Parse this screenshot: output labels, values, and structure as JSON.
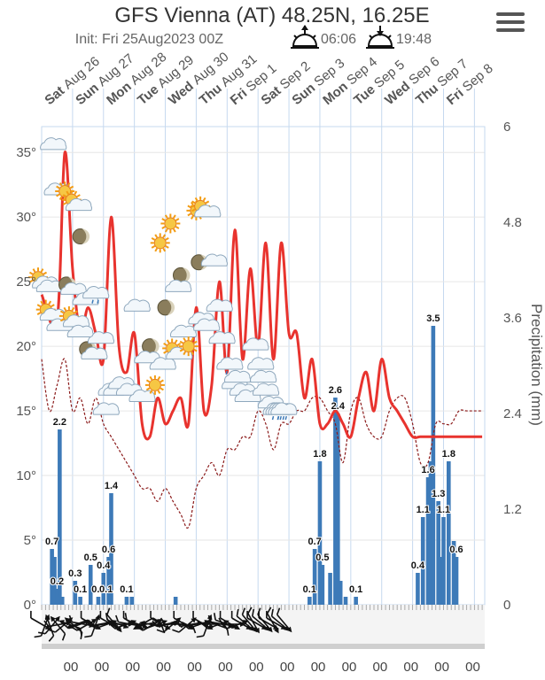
{
  "header": {
    "title": "GFS Vienna (AT) 48.25N, 16.25E",
    "init_label": "Init: Fri 25Aug2023 00Z",
    "sunrise": "06:06",
    "sunset": "19:48"
  },
  "menu": {
    "icon": "hamburger-icon"
  },
  "colors": {
    "temp": "#e8332e",
    "dew": "#8b1a1a",
    "precip": "#3d7ab8",
    "grid": "#c6d9ef"
  },
  "chart_data": {
    "type": "line",
    "title": "GFS Vienna (AT) 48.25N, 16.25E",
    "subtitle": "Init: Fri 25Aug2023 00Z",
    "days": [
      {
        "dow": "Sat",
        "date": "Aug 26"
      },
      {
        "dow": "Sun",
        "date": "Aug 27"
      },
      {
        "dow": "Mon",
        "date": "Aug 28"
      },
      {
        "dow": "Tue",
        "date": "Aug 29"
      },
      {
        "dow": "Wed",
        "date": "Aug 30"
      },
      {
        "dow": "Thu",
        "date": "Aug 31"
      },
      {
        "dow": "Fri",
        "date": "Sep 1"
      },
      {
        "dow": "Sat",
        "date": "Sep 2"
      },
      {
        "dow": "Sun",
        "date": "Sep 3"
      },
      {
        "dow": "Mon",
        "date": "Sep 4"
      },
      {
        "dow": "Tue",
        "date": "Sep 5"
      },
      {
        "dow": "Wed",
        "date": "Sep 6"
      },
      {
        "dow": "Thu",
        "date": "Sep 7"
      },
      {
        "dow": "Fri",
        "date": "Sep 8"
      }
    ],
    "left_axis": {
      "ticks": [
        "0°",
        "5°",
        "10°",
        "15°",
        "20°",
        "25°",
        "30°",
        "35°"
      ],
      "ylim": [
        0,
        37
      ]
    },
    "right_axis": {
      "title": "Precipitation (mm)",
      "ticks": [
        "0",
        "1.2",
        "2.4",
        "3.6",
        "4.8",
        "6"
      ],
      "ylim": [
        0,
        6
      ]
    },
    "hour_labels": [
      "00",
      "00",
      "00",
      "00",
      "00",
      "00",
      "00",
      "00",
      "00",
      "00",
      "00",
      "00",
      "00",
      "00"
    ],
    "series": [
      {
        "name": "Temperature",
        "unit": "°C",
        "x": [
          0,
          12,
          18,
          24,
          30,
          36,
          42,
          48,
          54,
          60,
          66,
          72,
          78,
          84,
          90,
          96,
          102,
          108,
          114,
          120,
          126,
          132,
          138,
          144,
          150,
          156,
          162,
          168,
          174,
          180,
          186,
          192,
          198,
          204,
          210,
          216,
          222,
          228,
          234,
          240,
          246,
          252,
          258,
          264,
          270,
          276,
          282,
          288,
          294,
          300,
          306,
          312,
          318,
          324,
          330,
          336,
          342
        ],
        "values": [
          24,
          22,
          35,
          26,
          21,
          23,
          21,
          19,
          30,
          20,
          18,
          21,
          14,
          13,
          16,
          14,
          15,
          16,
          14,
          23,
          15,
          17,
          25,
          18,
          29,
          19,
          26,
          20,
          28,
          19,
          28,
          21,
          21,
          16,
          19,
          14,
          14,
          15,
          14,
          13,
          16,
          18,
          15,
          19,
          16,
          15,
          14,
          13,
          13,
          13,
          13,
          13,
          13,
          13,
          13,
          13,
          13
        ]
      },
      {
        "name": "Dew point",
        "unit": "°C",
        "x": [
          0,
          6,
          12,
          18,
          24,
          30,
          36,
          42,
          48,
          54,
          60,
          66,
          72,
          78,
          84,
          90,
          96,
          102,
          108,
          114,
          120,
          126,
          132,
          138,
          144,
          150,
          156,
          162,
          168,
          174,
          180,
          186,
          192,
          198,
          204,
          210,
          216,
          222,
          228,
          234,
          240,
          246,
          252,
          258,
          264,
          270,
          276,
          282,
          288,
          294,
          300,
          306,
          312,
          318,
          324,
          330,
          336,
          342
        ],
        "values": [
          19,
          15,
          17,
          19,
          15,
          16,
          14,
          16,
          14,
          13,
          12,
          11,
          10,
          9,
          9,
          8,
          9,
          8,
          7,
          6,
          9,
          10,
          11,
          10,
          12,
          12,
          13,
          13,
          15,
          14,
          12,
          14,
          14,
          15,
          15,
          16,
          16,
          15,
          14,
          11,
          15,
          16,
          14,
          13,
          13,
          15,
          16,
          16,
          14,
          11,
          11,
          14,
          14,
          14,
          15,
          15,
          15,
          15
        ]
      },
      {
        "name": "Precipitation",
        "unit": "mm",
        "x": [
          8,
          10,
          12,
          14,
          16,
          26,
          30,
          38,
          44,
          48,
          52,
          54,
          66,
          70,
          104,
          208,
          212,
          216,
          218,
          224,
          228,
          230,
          232,
          236,
          244,
          292,
          296,
          300,
          302,
          304,
          308,
          310,
          312,
          316,
          320,
          322
        ],
        "values": [
          0.7,
          0.6,
          0.2,
          2.2,
          0.1,
          0.3,
          0.1,
          0.5,
          0.1,
          0.4,
          0.6,
          1.4,
          0.1,
          0.1,
          0.1,
          0.1,
          0.7,
          1.8,
          0.5,
          0.4,
          2.6,
          2.4,
          0.3,
          0.1,
          0.1,
          0.4,
          1.1,
          1.6,
          1.8,
          3.5,
          1.3,
          0.6,
          1.1,
          1.8,
          0.8,
          0.6
        ]
      }
    ],
    "bar_labels": [
      {
        "x": 14,
        "label": "2.2"
      },
      {
        "x": 8,
        "label": "0.7"
      },
      {
        "x": 12,
        "label": "0.2"
      },
      {
        "x": 26,
        "label": "0.3"
      },
      {
        "x": 30,
        "label": "0.1"
      },
      {
        "x": 38,
        "label": "0.5"
      },
      {
        "x": 44,
        "label": "0.1"
      },
      {
        "x": 48,
        "label": "0.4"
      },
      {
        "x": 50,
        "label": "0.1"
      },
      {
        "x": 52,
        "label": "0.6"
      },
      {
        "x": 54,
        "label": "1.4"
      },
      {
        "x": 66,
        "label": "0.1"
      },
      {
        "x": 208,
        "label": "0.1"
      },
      {
        "x": 212,
        "label": "0.7"
      },
      {
        "x": 216,
        "label": "1.8"
      },
      {
        "x": 218,
        "label": "0.5"
      },
      {
        "x": 228,
        "label": "2.6"
      },
      {
        "x": 230,
        "label": "2.4"
      },
      {
        "x": 244,
        "label": "0.1"
      },
      {
        "x": 292,
        "label": "0.4"
      },
      {
        "x": 296,
        "label": "1.1"
      },
      {
        "x": 300,
        "label": "1.6"
      },
      {
        "x": 304,
        "label": "3.5"
      },
      {
        "x": 308,
        "label": "1.3"
      },
      {
        "x": 312,
        "label": "1.1"
      },
      {
        "x": 316,
        "label": "1.8"
      },
      {
        "x": 322,
        "label": "0.6"
      }
    ],
    "weather_icons": [
      {
        "x": 0,
        "t": 25,
        "kind": "sun-cloud-icon"
      },
      {
        "x": 6,
        "t": 24.5,
        "kind": "cloud-icon"
      },
      {
        "x": 9,
        "t": 35.5,
        "kind": "cloud-icon"
      },
      {
        "x": 12,
        "t": 32,
        "kind": "cloud-icon"
      },
      {
        "x": 18,
        "t": 32,
        "kind": "sun-icon"
      },
      {
        "x": 6,
        "t": 22.5,
        "kind": "sun-cloud-icon"
      },
      {
        "x": 14,
        "t": 21.5,
        "kind": "cloud-icon"
      },
      {
        "x": 22,
        "t": 24.5,
        "kind": "moon-cloud-icon"
      },
      {
        "x": 26,
        "t": 31,
        "kind": "sun-cloud-icon"
      },
      {
        "x": 30,
        "t": 28.5,
        "kind": "moon-icon"
      },
      {
        "x": 24,
        "t": 22,
        "kind": "sun-cloud-icon"
      },
      {
        "x": 30,
        "t": 21,
        "kind": "cloud-icon"
      },
      {
        "x": 34,
        "t": 23.5,
        "kind": "cloud-icon"
      },
      {
        "x": 42,
        "t": 24,
        "kind": "rain-cloud-icon"
      },
      {
        "x": 38,
        "t": 19.5,
        "kind": "moon-cloud-icon"
      },
      {
        "x": 46,
        "t": 20.5,
        "kind": "cloud-icon"
      },
      {
        "x": 54,
        "t": 16.5,
        "kind": "cloud-icon"
      },
      {
        "x": 50,
        "t": 15,
        "kind": "cloud-icon"
      },
      {
        "x": 58,
        "t": 16.5,
        "kind": "cloud-icon"
      },
      {
        "x": 62,
        "t": 17,
        "kind": "cloud-icon"
      },
      {
        "x": 68,
        "t": 16.5,
        "kind": "cloud-icon"
      },
      {
        "x": 74,
        "t": 23,
        "kind": "cloud-icon"
      },
      {
        "x": 78,
        "t": 16,
        "kind": "cloud-icon"
      },
      {
        "x": 84,
        "t": 20,
        "kind": "moon-icon"
      },
      {
        "x": 82,
        "t": 19,
        "kind": "cloud-icon"
      },
      {
        "x": 88,
        "t": 17,
        "kind": "sun-icon"
      },
      {
        "x": 92,
        "t": 28,
        "kind": "sun-icon"
      },
      {
        "x": 100,
        "t": 29.5,
        "kind": "sun-icon"
      },
      {
        "x": 96,
        "t": 23,
        "kind": "moon-icon"
      },
      {
        "x": 94,
        "t": 18.5,
        "kind": "cloud-icon"
      },
      {
        "x": 104,
        "t": 19.5,
        "kind": "sun-cloud-icon"
      },
      {
        "x": 108,
        "t": 25.5,
        "kind": "moon-icon"
      },
      {
        "x": 106,
        "t": 24.5,
        "kind": "cloud-icon"
      },
      {
        "x": 110,
        "t": 21,
        "kind": "cloud-icon"
      },
      {
        "x": 114,
        "t": 20,
        "kind": "sun-icon"
      },
      {
        "x": 120,
        "t": 30.5,
        "kind": "sun-icon"
      },
      {
        "x": 122,
        "t": 26.5,
        "kind": "moon-icon"
      },
      {
        "x": 126,
        "t": 30.5,
        "kind": "sun-cloud-icon"
      },
      {
        "x": 124,
        "t": 22,
        "kind": "cloud-icon"
      },
      {
        "x": 128,
        "t": 21.5,
        "kind": "cloud-icon"
      },
      {
        "x": 134,
        "t": 26.5,
        "kind": "cloud-icon"
      },
      {
        "x": 138,
        "t": 23,
        "kind": "cloud-icon"
      },
      {
        "x": 140,
        "t": 20.5,
        "kind": "cloud-icon"
      },
      {
        "x": 146,
        "t": 18.5,
        "kind": "rain-cloud-icon"
      },
      {
        "x": 150,
        "t": 17,
        "kind": "rain-cloud-icon"
      },
      {
        "x": 152,
        "t": 17.5,
        "kind": "cloud-icon"
      },
      {
        "x": 156,
        "t": 16.5,
        "kind": "rain-cloud-icon"
      },
      {
        "x": 160,
        "t": 16,
        "kind": "cloud-icon"
      },
      {
        "x": 166,
        "t": 20,
        "kind": "cloud-icon"
      },
      {
        "x": 170,
        "t": 18.5,
        "kind": "cloud-icon"
      },
      {
        "x": 172,
        "t": 17.5,
        "kind": "cloud-icon"
      },
      {
        "x": 174,
        "t": 16.5,
        "kind": "cloud-icon"
      },
      {
        "x": 178,
        "t": 15.5,
        "kind": "rain-cloud-icon"
      },
      {
        "x": 182,
        "t": 15,
        "kind": "rain-cloud-icon"
      },
      {
        "x": 184,
        "t": 15,
        "kind": "cloud-icon"
      },
      {
        "x": 186,
        "t": 15,
        "kind": "rain-cloud-icon"
      },
      {
        "x": 188,
        "t": 15,
        "kind": "rain-cloud-icon"
      }
    ],
    "wind": [
      {
        "x": 0,
        "dir": 300
      },
      {
        "x": 3,
        "dir": 200
      },
      {
        "x": 6,
        "dir": 160
      },
      {
        "x": 9,
        "dir": 220
      },
      {
        "x": 12,
        "dir": 140
      },
      {
        "x": 15,
        "dir": 260
      },
      {
        "x": 18,
        "dir": 230
      },
      {
        "x": 21,
        "dir": 110
      },
      {
        "x": 24,
        "dir": 130
      },
      {
        "x": 27,
        "dir": 70
      },
      {
        "x": 30,
        "dir": 250
      },
      {
        "x": 33,
        "dir": 280
      },
      {
        "x": 36,
        "dir": 240
      },
      {
        "x": 39,
        "dir": 300
      },
      {
        "x": 42,
        "dir": 200
      },
      {
        "x": 45,
        "dir": 80
      },
      {
        "x": 48,
        "dir": 260
      },
      {
        "x": 51,
        "dir": 250
      },
      {
        "x": 54,
        "dir": 300
      },
      {
        "x": 57,
        "dir": 320
      },
      {
        "x": 60,
        "dir": 290
      },
      {
        "x": 63,
        "dir": 270
      },
      {
        "x": 66,
        "dir": 250
      },
      {
        "x": 69,
        "dir": 280
      },
      {
        "x": 72,
        "dir": 300
      },
      {
        "x": 75,
        "dir": 290
      },
      {
        "x": 78,
        "dir": 60
      },
      {
        "x": 81,
        "dir": 80
      },
      {
        "x": 84,
        "dir": 100
      },
      {
        "x": 87,
        "dir": 240
      },
      {
        "x": 90,
        "dir": 250
      },
      {
        "x": 93,
        "dir": 300
      },
      {
        "x": 96,
        "dir": 80
      },
      {
        "x": 99,
        "dir": 260
      },
      {
        "x": 102,
        "dir": 230
      },
      {
        "x": 105,
        "dir": 270
      },
      {
        "x": 108,
        "dir": 100
      },
      {
        "x": 111,
        "dir": 300
      },
      {
        "x": 114,
        "dir": 230
      },
      {
        "x": 117,
        "dir": 260
      },
      {
        "x": 120,
        "dir": 80
      },
      {
        "x": 123,
        "dir": 250
      },
      {
        "x": 126,
        "dir": 300
      },
      {
        "x": 129,
        "dir": 200
      },
      {
        "x": 132,
        "dir": 90
      },
      {
        "x": 135,
        "dir": 110
      },
      {
        "x": 138,
        "dir": 250
      },
      {
        "x": 141,
        "dir": 280
      },
      {
        "x": 144,
        "dir": 290
      },
      {
        "x": 147,
        "dir": 300
      },
      {
        "x": 150,
        "dir": 270
      },
      {
        "x": 153,
        "dir": 250
      },
      {
        "x": 156,
        "dir": 300
      },
      {
        "x": 159,
        "dir": 310
      },
      {
        "x": 162,
        "dir": 320
      },
      {
        "x": 165,
        "dir": 330
      },
      {
        "x": 168,
        "dir": 300
      },
      {
        "x": 171,
        "dir": 310
      },
      {
        "x": 174,
        "dir": 320
      },
      {
        "x": 177,
        "dir": 300
      },
      {
        "x": 180,
        "dir": 330
      },
      {
        "x": 183,
        "dir": 300
      },
      {
        "x": 186,
        "dir": 310
      },
      {
        "x": 189,
        "dir": 320
      }
    ]
  }
}
